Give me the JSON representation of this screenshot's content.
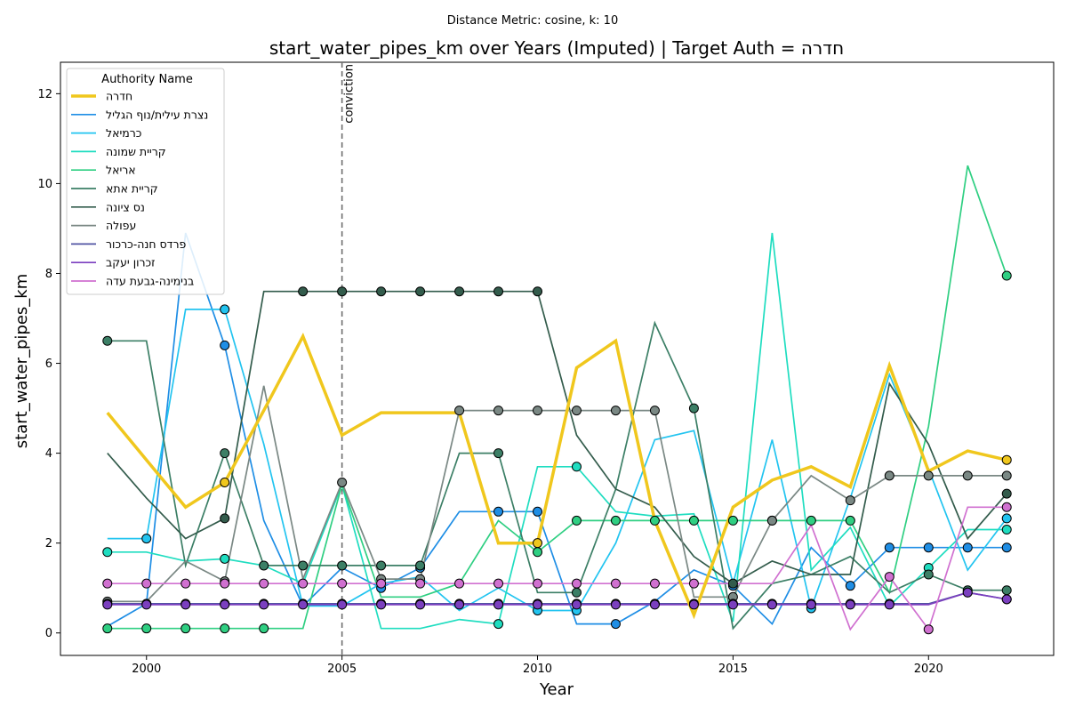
{
  "chart_data": {
    "type": "line",
    "suptitle": "Distance Metric: cosine, k: 10",
    "title": "start_water_pipes_km over Years (Imputed) | Target Auth = חדרה",
    "xlabel": "Year",
    "ylabel": "start_water_pipes_km",
    "xlim": [
      1997.8,
      2023.2
    ],
    "ylim": [
      -0.5,
      12.7
    ],
    "xticks": [
      2000,
      2005,
      2010,
      2015,
      2020
    ],
    "yticks": [
      0,
      2,
      4,
      6,
      8,
      10,
      12
    ],
    "grid": false,
    "annotations": [
      {
        "x": 2005,
        "label": "conviction"
      }
    ],
    "legend": {
      "title": "Authority Name",
      "placement": "upper-left"
    },
    "x": [
      1999,
      2000,
      2001,
      2002,
      2003,
      2004,
      2005,
      2006,
      2007,
      2008,
      2009,
      2010,
      2011,
      2012,
      2013,
      2014,
      2015,
      2016,
      2017,
      2018,
      2019,
      2020,
      2021,
      2022
    ],
    "series": [
      {
        "name": "חדרה",
        "color": "#f0c71d",
        "target": true,
        "values": [
          4.9,
          3.85,
          2.8,
          3.35,
          4.95,
          6.6,
          4.4,
          4.9,
          4.9,
          4.9,
          2.0,
          2.0,
          5.9,
          6.5,
          2.5,
          0.4,
          2.8,
          3.4,
          3.7,
          3.25,
          5.95,
          3.6,
          4.05,
          3.85
        ],
        "markers": [
          false,
          false,
          false,
          true,
          false,
          false,
          false,
          false,
          false,
          false,
          false,
          true,
          false,
          false,
          false,
          false,
          false,
          false,
          false,
          false,
          false,
          false,
          false,
          true
        ]
      },
      {
        "name": "נצרת עילית/נוף הגליל",
        "color": "#1f8ee5",
        "values": [
          0.15,
          0.65,
          8.9,
          6.4,
          2.5,
          0.6,
          1.45,
          1.0,
          1.45,
          2.7,
          2.7,
          2.7,
          0.2,
          0.2,
          0.7,
          1.4,
          1.05,
          0.2,
          1.9,
          1.05,
          1.9,
          1.9,
          1.9,
          1.9
        ],
        "markers": [
          false,
          false,
          false,
          true,
          false,
          false,
          false,
          true,
          true,
          false,
          true,
          true,
          false,
          true,
          false,
          false,
          true,
          false,
          false,
          true,
          true,
          true,
          true,
          true
        ]
      },
      {
        "name": "כרמיאל",
        "color": "#22c4f0",
        "values": [
          2.1,
          2.1,
          7.2,
          7.2,
          4.2,
          0.6,
          0.6,
          1.1,
          1.25,
          0.5,
          1.0,
          0.5,
          0.5,
          2.0,
          4.3,
          4.5,
          1.1,
          4.3,
          0.55,
          3.0,
          5.75,
          3.65,
          1.4,
          2.55
        ],
        "markers": [
          false,
          true,
          false,
          true,
          false,
          false,
          false,
          false,
          false,
          false,
          false,
          true,
          true,
          false,
          false,
          false,
          false,
          false,
          true,
          false,
          false,
          false,
          false,
          true
        ]
      },
      {
        "name": "קריית שמונה",
        "color": "#1fddc0",
        "values": [
          1.8,
          1.8,
          1.6,
          1.65,
          1.5,
          1.1,
          3.3,
          0.1,
          0.1,
          0.3,
          0.2,
          3.7,
          3.7,
          2.7,
          2.6,
          2.65,
          0.25,
          8.9,
          1.4,
          2.35,
          0.6,
          1.45,
          2.3,
          2.3
        ],
        "markers": [
          true,
          false,
          false,
          true,
          false,
          false,
          false,
          false,
          false,
          false,
          true,
          false,
          true,
          false,
          false,
          false,
          false,
          false,
          false,
          false,
          false,
          true,
          false,
          true
        ]
      },
      {
        "name": "אריאל",
        "color": "#2fcf82",
        "values": [
          0.1,
          0.1,
          0.1,
          0.1,
          0.1,
          0.1,
          3.3,
          0.8,
          0.8,
          1.1,
          2.5,
          1.8,
          2.5,
          2.5,
          2.5,
          2.5,
          2.5,
          2.5,
          2.5,
          2.5,
          0.9,
          4.6,
          10.4,
          7.95
        ],
        "markers": [
          true,
          true,
          true,
          true,
          true,
          false,
          false,
          false,
          false,
          false,
          false,
          true,
          true,
          true,
          true,
          true,
          true,
          true,
          true,
          true,
          false,
          false,
          false,
          true
        ]
      },
      {
        "name": "קריית אתא",
        "color": "#3c7f66",
        "values": [
          6.5,
          6.5,
          1.5,
          4.0,
          1.5,
          1.5,
          1.5,
          1.5,
          1.5,
          4.0,
          4.0,
          0.9,
          0.9,
          3.2,
          6.9,
          5.0,
          0.1,
          1.1,
          1.3,
          1.7,
          0.9,
          1.3,
          0.95,
          0.95
        ],
        "markers": [
          true,
          false,
          false,
          true,
          true,
          true,
          true,
          true,
          true,
          false,
          true,
          false,
          true,
          false,
          false,
          true,
          false,
          false,
          false,
          false,
          false,
          true,
          true,
          true
        ]
      },
      {
        "name": "נס ציונה",
        "color": "#335c4c",
        "values": [
          4.0,
          3.0,
          2.1,
          2.55,
          7.6,
          7.6,
          7.6,
          7.6,
          7.6,
          7.6,
          7.6,
          7.6,
          4.4,
          3.2,
          2.8,
          1.7,
          1.1,
          1.6,
          1.3,
          1.3,
          5.55,
          4.2,
          2.1,
          3.1
        ],
        "markers": [
          false,
          false,
          false,
          true,
          false,
          true,
          true,
          true,
          true,
          true,
          true,
          true,
          false,
          false,
          false,
          false,
          true,
          false,
          false,
          false,
          false,
          false,
          false,
          true
        ]
      },
      {
        "name": "עפולה",
        "color": "#7a8884",
        "values": [
          0.7,
          0.7,
          1.6,
          1.15,
          5.5,
          1.2,
          3.35,
          1.2,
          1.2,
          4.95,
          4.95,
          4.95,
          4.95,
          4.95,
          4.95,
          0.8,
          0.8,
          2.5,
          3.5,
          2.95,
          3.5,
          3.5,
          3.5,
          3.5
        ],
        "markers": [
          true,
          false,
          false,
          true,
          false,
          false,
          true,
          true,
          true,
          true,
          true,
          true,
          true,
          true,
          true,
          false,
          true,
          true,
          false,
          true,
          true,
          true,
          true,
          true
        ]
      },
      {
        "name": "פרדס חנה-כרכור",
        "color": "#5254a3",
        "values": [
          0.65,
          0.65,
          0.65,
          0.65,
          0.65,
          0.65,
          0.65,
          0.65,
          0.65,
          0.65,
          0.65,
          0.65,
          0.65,
          0.65,
          0.65,
          0.65,
          0.65,
          0.65,
          0.65,
          0.65,
          0.65,
          0.65,
          0.9,
          0.75
        ],
        "markers": [
          true,
          true,
          true,
          true,
          true,
          true,
          true,
          true,
          true,
          true,
          true,
          true,
          true,
          true,
          true,
          true,
          true,
          true,
          true,
          true,
          true,
          false,
          true,
          true
        ]
      },
      {
        "name": "זכרון יעקב",
        "color": "#7b3fbf",
        "values": [
          0.63,
          0.63,
          0.63,
          0.63,
          0.63,
          0.63,
          0.63,
          0.63,
          0.63,
          0.63,
          0.63,
          0.63,
          0.63,
          0.63,
          0.63,
          0.63,
          0.63,
          0.63,
          0.63,
          0.63,
          0.63,
          0.63,
          0.9,
          0.75
        ],
        "markers": [
          true,
          true,
          true,
          true,
          true,
          true,
          true,
          true,
          true,
          true,
          true,
          true,
          true,
          true,
          true,
          true,
          true,
          true,
          true,
          true,
          true,
          false,
          true,
          true
        ]
      },
      {
        "name": "בנימינה-גבעת עדה",
        "color": "#d070d0",
        "values": [
          1.1,
          1.1,
          1.1,
          1.1,
          1.1,
          1.1,
          1.1,
          1.1,
          1.1,
          1.1,
          1.1,
          1.1,
          1.1,
          1.1,
          1.1,
          1.1,
          1.1,
          1.1,
          2.4,
          0.08,
          1.25,
          0.08,
          2.8,
          2.8
        ],
        "markers": [
          true,
          true,
          true,
          true,
          true,
          true,
          true,
          true,
          true,
          true,
          true,
          true,
          true,
          true,
          true,
          true,
          false,
          false,
          false,
          false,
          true,
          true,
          false,
          true
        ]
      }
    ]
  }
}
